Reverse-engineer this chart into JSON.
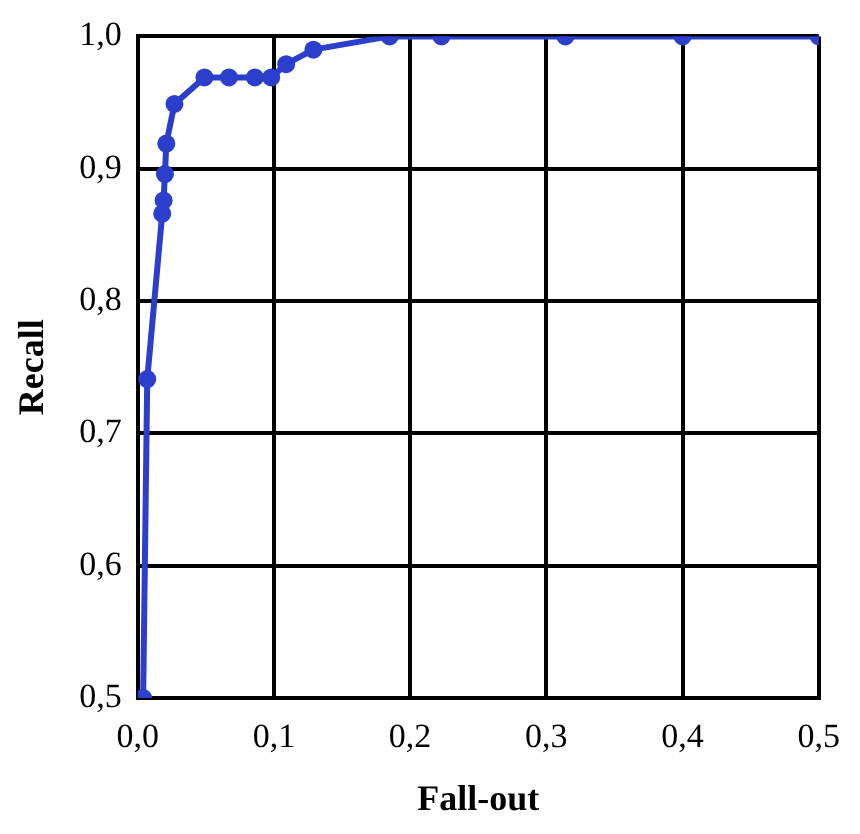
{
  "chart_data": {
    "type": "line",
    "xlabel": "Fall-out",
    "ylabel": "Recall",
    "xlim": [
      0,
      0.5
    ],
    "ylim": [
      0.5,
      1.0
    ],
    "xticks": [
      {
        "value": 0,
        "label": "0,0"
      },
      {
        "value": 0.1,
        "label": "0,1"
      },
      {
        "value": 0.2,
        "label": "0,2"
      },
      {
        "value": 0.3,
        "label": "0,3"
      },
      {
        "value": 0.4,
        "label": "0,4"
      },
      {
        "value": 0.5,
        "label": "0,5"
      }
    ],
    "yticks": [
      {
        "value": 0.5,
        "label": "0,5"
      },
      {
        "value": 0.6,
        "label": "0,6"
      },
      {
        "value": 0.7,
        "label": "0,7"
      },
      {
        "value": 0.8,
        "label": "0,8"
      },
      {
        "value": 0.9,
        "label": "0,9"
      },
      {
        "value": 1.0,
        "label": "1,0"
      }
    ],
    "grid": true,
    "marker": "circle",
    "line_style": "solid",
    "series": [
      {
        "color": "#2b3fcc",
        "x": [
          0.004,
          0.007,
          0.018,
          0.019,
          0.02,
          0.021,
          0.027,
          0.049,
          0.067,
          0.086,
          0.098,
          0.109,
          0.129,
          0.185,
          0.223,
          0.314,
          0.4,
          0.5
        ],
        "values": [
          0.5,
          0.741,
          0.866,
          0.876,
          0.896,
          0.919,
          0.949,
          0.969,
          0.969,
          0.969,
          0.969,
          0.979,
          0.99,
          1.0,
          1.0,
          1.0,
          1.0,
          1.0
        ]
      }
    ]
  }
}
